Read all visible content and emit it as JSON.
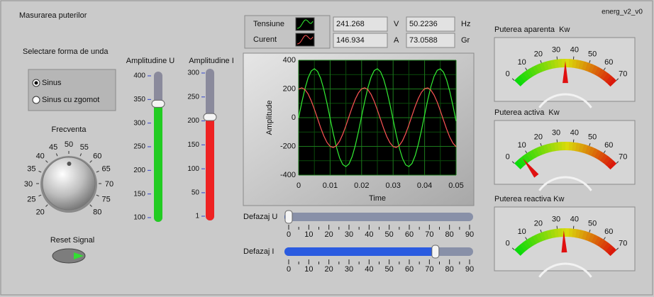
{
  "header": {
    "title": "Masurarea puterilor",
    "version": "energ_v2_v0"
  },
  "waveform_selector": {
    "label": "Selectare forma de unda",
    "options": [
      "Sinus",
      "Sinus cu zgomot"
    ],
    "selected": 0
  },
  "frequency_knob": {
    "label": "Frecventa",
    "range": [
      20,
      80
    ],
    "ticks": [
      20,
      25,
      30,
      35,
      40,
      45,
      50,
      55,
      60,
      65,
      70,
      75,
      80
    ]
  },
  "reset_button": {
    "label": "Reset Signal"
  },
  "amplitude_sliders": [
    {
      "label": "Amplitudine U",
      "color": "#22cc22",
      "range": [
        100,
        400
      ],
      "ticks": [
        100,
        150,
        200,
        250,
        300,
        350,
        400
      ],
      "value": 341
    },
    {
      "label": "Amplitudine I",
      "color": "#ee2222",
      "range": [
        1,
        300
      ],
      "ticks": [
        1,
        50,
        100,
        150,
        200,
        250,
        300
      ],
      "value": 208
    }
  ],
  "indicators": [
    {
      "value": 241.268,
      "unit": "V"
    },
    {
      "value": 146.934,
      "unit": "A"
    },
    {
      "value": 50.2236,
      "unit": "Hz"
    },
    {
      "value": 73.0588,
      "unit": "Gr"
    }
  ],
  "chart_data": {
    "type": "line",
    "xlabel": "Time",
    "ylabel": "Amplitude",
    "xlim": [
      0,
      0.05
    ],
    "ylim": [
      -400,
      400
    ],
    "xticks": [
      0,
      0.01,
      0.02,
      0.03,
      0.04,
      0.05
    ],
    "yticks": [
      -400,
      -200,
      0,
      200,
      400
    ],
    "grid": true,
    "x": [
      0,
      0.001,
      0.002,
      0.003,
      0.004,
      0.005,
      0.006,
      0.007,
      0.008,
      0.009,
      0.01,
      0.011,
      0.012,
      0.013,
      0.014,
      0.015,
      0.016,
      0.017,
      0.018,
      0.019,
      0.02,
      0.021,
      0.022,
      0.023,
      0.024,
      0.025,
      0.026,
      0.027,
      0.028,
      0.029,
      0.03,
      0.031,
      0.032,
      0.033,
      0.034,
      0.035,
      0.036,
      0.037,
      0.038,
      0.039,
      0.04,
      0.041,
      0.042,
      0.043,
      0.044,
      0.045,
      0.046,
      0.047,
      0.048,
      0.049,
      0.05
    ],
    "series": [
      {
        "name": "Tensiune",
        "color": "#33ee33",
        "values": [
          0,
          106,
          201,
          277,
          325,
          341,
          323,
          274,
          197,
          101,
          -5,
          -110,
          -205,
          -280,
          -326,
          -341,
          -322,
          -271,
          -193,
          -97,
          10,
          115,
          209,
          282,
          328,
          341,
          320,
          268,
          189,
          92,
          -14,
          -119,
          -213,
          -285,
          -329,
          -341,
          -319,
          -265,
          -186,
          -88,
          19,
          124,
          216,
          287,
          330,
          340,
          317,
          262,
          182,
          83,
          -24
        ]
      },
      {
        "name": "Curent",
        "color": "#ff5555",
        "values": [
          199,
          208,
          196,
          166,
          118,
          59,
          -5,
          -70,
          -127,
          -172,
          -200,
          -208,
          -195,
          -164,
          -116,
          -57,
          8,
          72,
          129,
          173,
          201,
          208,
          195,
          162,
          114,
          54,
          -11,
          -75,
          -132,
          -175,
          -201,
          -208,
          -193,
          -160,
          -111,
          -51,
          14,
          78,
          134,
          177,
          202,
          207,
          192,
          158,
          109,
          48,
          -17,
          -80,
          -136,
          -178,
          -202
        ]
      }
    ]
  },
  "phase_sliders": [
    {
      "label": "Defazaj U",
      "range": [
        0,
        90
      ],
      "ticks": [
        0,
        10,
        20,
        30,
        40,
        50,
        60,
        70,
        80,
        90
      ],
      "value": 0
    },
    {
      "label": "Defazaj I",
      "range": [
        0,
        90
      ],
      "ticks": [
        0,
        10,
        20,
        30,
        40,
        50,
        60,
        70,
        80,
        90
      ],
      "value": 73
    }
  ],
  "gauges": [
    {
      "label": "Puterea aparenta  Kw",
      "range": [
        0,
        70
      ],
      "ticks": [
        0,
        10,
        20,
        30,
        40,
        50,
        60,
        70
      ],
      "value": 35
    },
    {
      "label": "Puterea activa  Kw",
      "range": [
        0,
        70
      ],
      "ticks": [
        0,
        10,
        20,
        30,
        40,
        50,
        60,
        70
      ],
      "value": 6
    },
    {
      "label": "Puterea reactiva Kw",
      "range": [
        0,
        70
      ],
      "ticks": [
        0,
        10,
        20,
        30,
        40,
        50,
        60,
        70
      ],
      "value": 34
    }
  ]
}
